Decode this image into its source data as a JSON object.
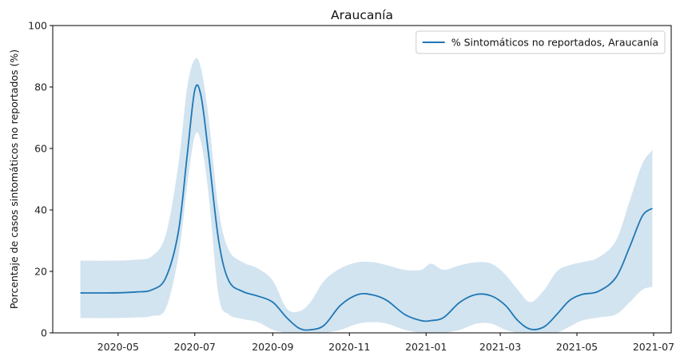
{
  "chart_data": {
    "type": "line",
    "title": "Araucanía",
    "xlabel": "",
    "ylabel": "Porcentaje de casos sintomáticos no reportados (%)",
    "ylim": [
      0,
      100
    ],
    "xlim": [
      "2020-03-10",
      "2021-07-15"
    ],
    "grid": false,
    "legend_position": "top-right",
    "x_ticks": [
      "2020-05",
      "2020-07",
      "2020-09",
      "2020-11",
      "2021-01",
      "2021-03",
      "2021-05",
      "2021-07"
    ],
    "y_ticks": [
      0,
      20,
      40,
      60,
      80,
      100
    ],
    "series": [
      {
        "name": "% Sintomáticos no reportados, Araucanía",
        "color": "#1f77b4",
        "band_color": "#1f77b4",
        "band_opacity": 0.2,
        "x": [
          "2020-04-01",
          "2020-04-25",
          "2020-05-15",
          "2020-05-28",
          "2020-06-08",
          "2020-06-18",
          "2020-06-25",
          "2020-07-01",
          "2020-07-06",
          "2020-07-12",
          "2020-07-20",
          "2020-07-28",
          "2020-08-08",
          "2020-08-20",
          "2020-09-01",
          "2020-09-12",
          "2020-09-22",
          "2020-10-01",
          "2020-10-12",
          "2020-10-25",
          "2020-11-08",
          "2020-11-20",
          "2020-12-01",
          "2020-12-15",
          "2020-12-28",
          "2021-01-05",
          "2021-01-15",
          "2021-01-28",
          "2021-02-10",
          "2021-02-22",
          "2021-03-05",
          "2021-03-15",
          "2021-03-25",
          "2021-04-05",
          "2021-04-15",
          "2021-04-25",
          "2021-05-05",
          "2021-05-18",
          "2021-06-01",
          "2021-06-12",
          "2021-06-22",
          "2021-06-30"
        ],
        "y": [
          13,
          13,
          13.3,
          14,
          18,
          33,
          58,
          79,
          77,
          58,
          30,
          17,
          13.5,
          12,
          10,
          5,
          1.5,
          1,
          2.5,
          9,
          12.5,
          12.3,
          10.5,
          6,
          4,
          4,
          5,
          10,
          12.5,
          12,
          9,
          4,
          1.2,
          2,
          6,
          10.5,
          12.5,
          13.5,
          18,
          28,
          38,
          40.5
        ],
        "lower": [
          4.8,
          4.8,
          5,
          5.5,
          8,
          25,
          48,
          64,
          62,
          45,
          12,
          6,
          4.5,
          3.5,
          1,
          0,
          0,
          0,
          0,
          1,
          3,
          3.5,
          3,
          1,
          0,
          0,
          0,
          1,
          3,
          3,
          1,
          0,
          0,
          0,
          0,
          2,
          4,
          5,
          6,
          10,
          14,
          15
        ],
        "upper": [
          23.5,
          23.5,
          23.8,
          25,
          32,
          55,
          80,
          89,
          86,
          70,
          40,
          27,
          23,
          21,
          17,
          8,
          7,
          10,
          17,
          21,
          23,
          23,
          22,
          20.5,
          20.5,
          22.5,
          20.5,
          22,
          23,
          22.5,
          19,
          14,
          10,
          14,
          20,
          22,
          23,
          24.5,
          30,
          43,
          55,
          59.5
        ]
      }
    ]
  }
}
